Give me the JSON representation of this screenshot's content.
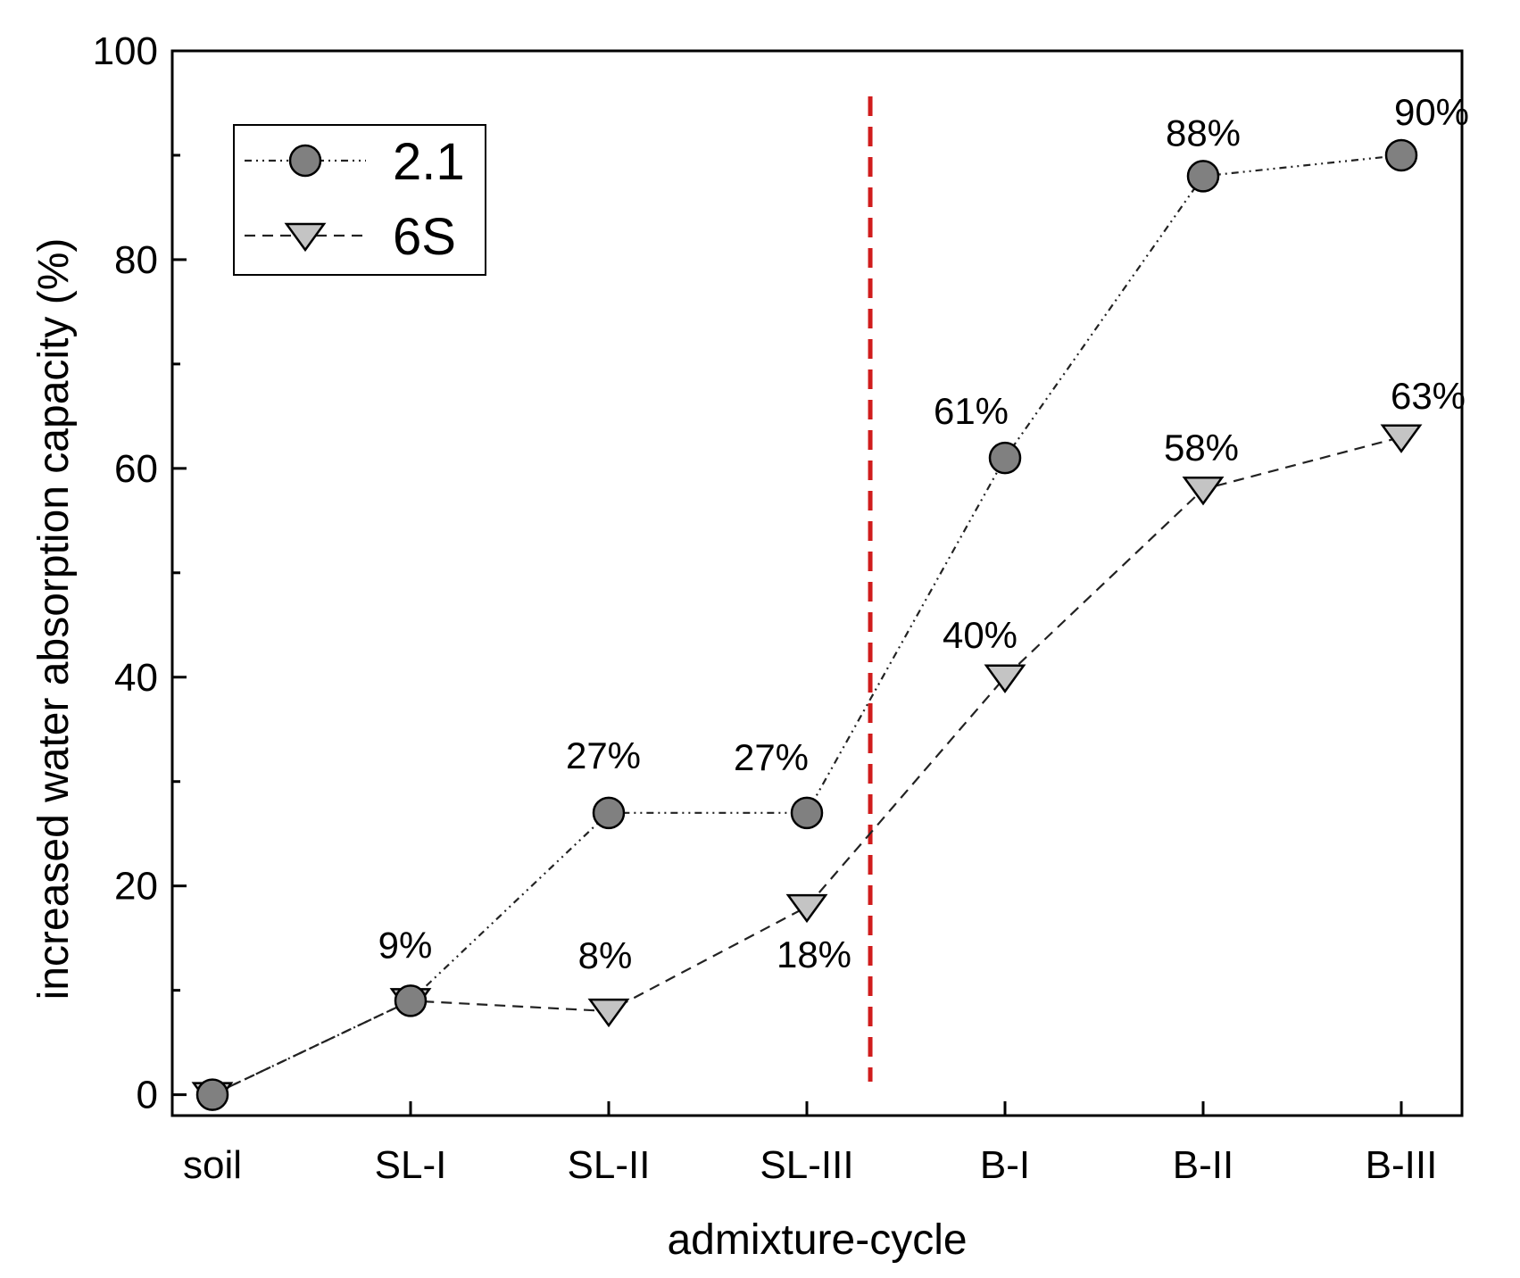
{
  "chart_data": {
    "type": "line",
    "title": "",
    "xlabel": "admixture-cycle",
    "ylabel": "increased water absorption capacity (%)",
    "categories": [
      "soil",
      "SL-I",
      "SL-II",
      "SL-III",
      "B-I",
      "B-II",
      "B-III"
    ],
    "ylim": [
      -2,
      100
    ],
    "yticks": [
      0,
      20,
      40,
      60,
      80,
      100
    ],
    "grid": false,
    "legend_position": "top-left",
    "divider_after_category": "SL-III",
    "divider_color": "#d01c1c",
    "series": [
      {
        "name": "2.1",
        "marker": "circle",
        "line_style": "dash-dot-dot",
        "color": "#808080",
        "values": [
          0,
          9,
          27,
          27,
          61,
          88,
          90
        ],
        "labels": [
          "",
          "9%",
          "27%",
          "27%",
          "61%",
          "88%",
          "90%"
        ]
      },
      {
        "name": "6S",
        "marker": "triangle-down",
        "line_style": "dashed",
        "color": "#c4c4c4",
        "values": [
          0,
          9,
          8,
          18,
          40,
          58,
          63
        ],
        "labels": [
          "",
          "",
          "8%",
          "18%",
          "40%",
          "58%",
          "63%"
        ]
      }
    ]
  }
}
